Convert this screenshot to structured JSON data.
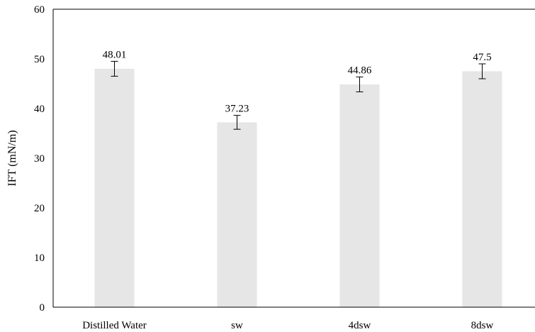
{
  "chart_data": {
    "type": "bar",
    "title": "",
    "xlabel": "",
    "ylabel": "IFT (mN/m)",
    "ylim": [
      0,
      60
    ],
    "yticks": [
      0,
      10,
      20,
      30,
      40,
      50,
      60
    ],
    "grid": false,
    "legend": "none",
    "categories": [
      "Distilled Water",
      "sw",
      "4dsw",
      "8dsw"
    ],
    "values": [
      48.01,
      37.23,
      44.86,
      47.5
    ],
    "data_labels": [
      "48.01",
      "37.23",
      "44.86",
      "47.5"
    ],
    "error": [
      1.5,
      1.4,
      1.5,
      1.5
    ],
    "bar_color": "#e6e6e6",
    "axis_color": "#000000"
  }
}
